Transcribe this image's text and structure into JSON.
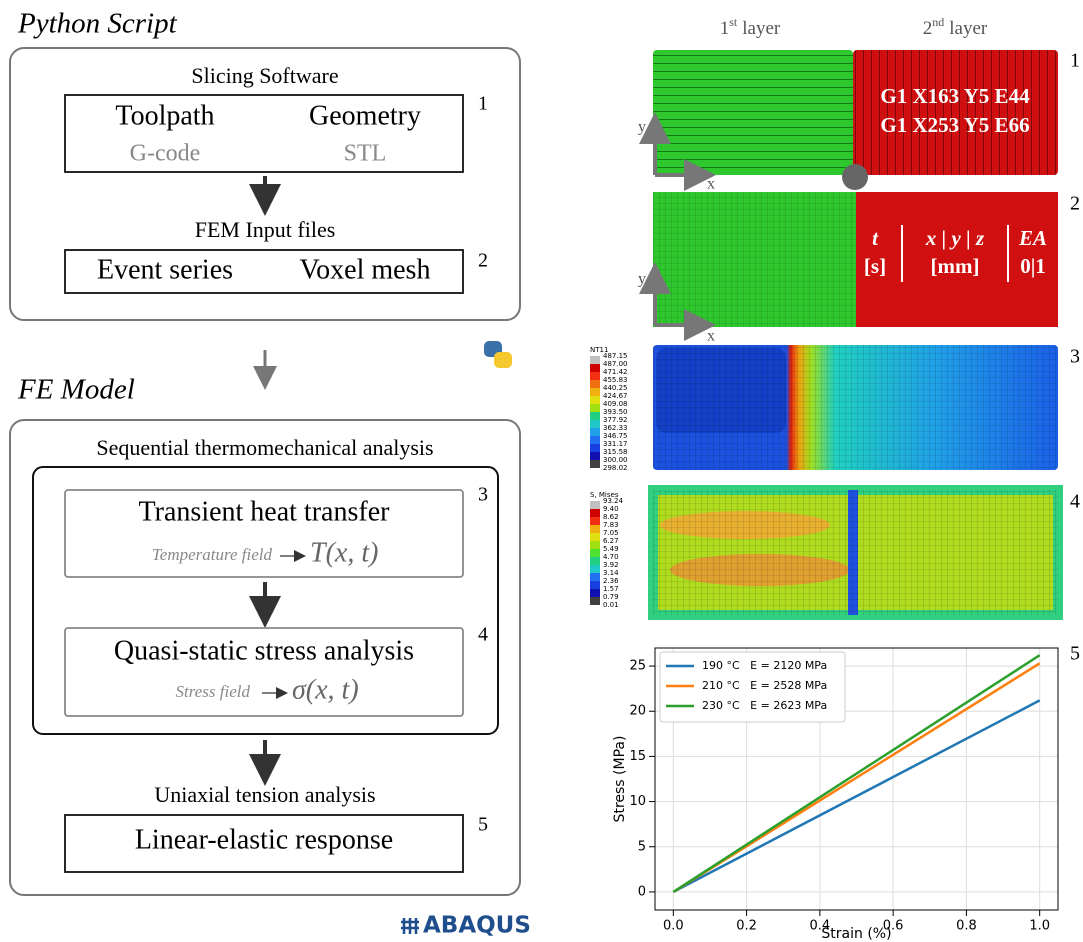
{
  "python_script": {
    "title": "Python Script",
    "slicing": {
      "title": "Slicing Software",
      "step": "1",
      "items": [
        {
          "label": "Toolpath",
          "sub": "G-code"
        },
        {
          "label": "Geometry",
          "sub": "STL"
        }
      ]
    },
    "fem_input": {
      "title": "FEM Input files",
      "step": "2",
      "items": [
        "Event series",
        "Voxel mesh"
      ]
    }
  },
  "fe_model": {
    "title": "FE Model",
    "sequential": "Sequential thermomechanical analysis",
    "heat": {
      "title": "Transient heat transfer",
      "field": "Temperature field",
      "symbol": "T(x, t)",
      "step": "3"
    },
    "stress": {
      "title": "Quasi-static stress analysis",
      "field": "Stress field",
      "symbol": "σ(x, t)",
      "step": "4"
    },
    "uniaxial": {
      "title": "Uniaxial tension analysis",
      "box": "Linear-elastic response",
      "step": "5"
    }
  },
  "logo": "ABAQUS",
  "panels": {
    "layers": [
      {
        "n": "1",
        "sup": "st",
        "word": "layer"
      },
      {
        "n": "2",
        "sup": "nd",
        "word": "layer"
      }
    ],
    "gcode": [
      "G1 X163 Y5 E44",
      "G1 X253 Y5 E66"
    ],
    "axis_x": "x",
    "axis_y": "y",
    "event_table": [
      {
        "head": "t",
        "unit": "[s]"
      },
      {
        "head": "x | y | z",
        "unit": "[mm]"
      },
      {
        "head": "EA",
        "unit": "0|1"
      }
    ],
    "steps": [
      "1",
      "2",
      "3",
      "4",
      "5"
    ],
    "nt11": {
      "title": "NT11",
      "levels": [
        "487.15",
        "487.00",
        "471.42",
        "455.83",
        "440.25",
        "424.67",
        "409.08",
        "393.50",
        "377.92",
        "362.33",
        "346.75",
        "331.17",
        "315.58",
        "300.00",
        "298.02"
      ]
    },
    "mises": {
      "title": "S, Mises",
      "levels": [
        "93.24",
        "9.40",
        "8.62",
        "7.83",
        "7.05",
        "6.27",
        "5.49",
        "4.70",
        "3.92",
        "3.14",
        "2.36",
        "1.57",
        "0.79",
        "0.01"
      ]
    }
  },
  "chart_data": {
    "type": "line",
    "x_label": "Strain (%)",
    "y_label": "Stress (MPa)",
    "x": [
      0,
      1.0
    ],
    "series": [
      {
        "name": "190 °C   E = 2120 MPa",
        "color": "#1f77b4",
        "values": [
          0,
          21.2
        ]
      },
      {
        "name": "210 °C   E = 2528 MPa",
        "color": "#ff7f0e",
        "values": [
          0,
          25.3
        ]
      },
      {
        "name": "230 °C   E = 2623 MPa",
        "color": "#2ca02c",
        "values": [
          0,
          26.2
        ]
      }
    ],
    "xlim": [
      -0.05,
      1.05
    ],
    "ylim": [
      -2,
      27
    ],
    "xticks": [
      {
        "value": 0,
        "label": "0.0"
      },
      {
        "value": 0.2,
        "label": "0.2"
      },
      {
        "value": 0.4,
        "label": "0.4"
      },
      {
        "value": 0.6,
        "label": "0.6"
      },
      {
        "value": 0.8,
        "label": "0.8"
      },
      {
        "value": 1.0,
        "label": "1.0"
      }
    ],
    "yticks": [
      0,
      5,
      10,
      15,
      20,
      25
    ],
    "grid": true,
    "legend": "upper-left"
  }
}
